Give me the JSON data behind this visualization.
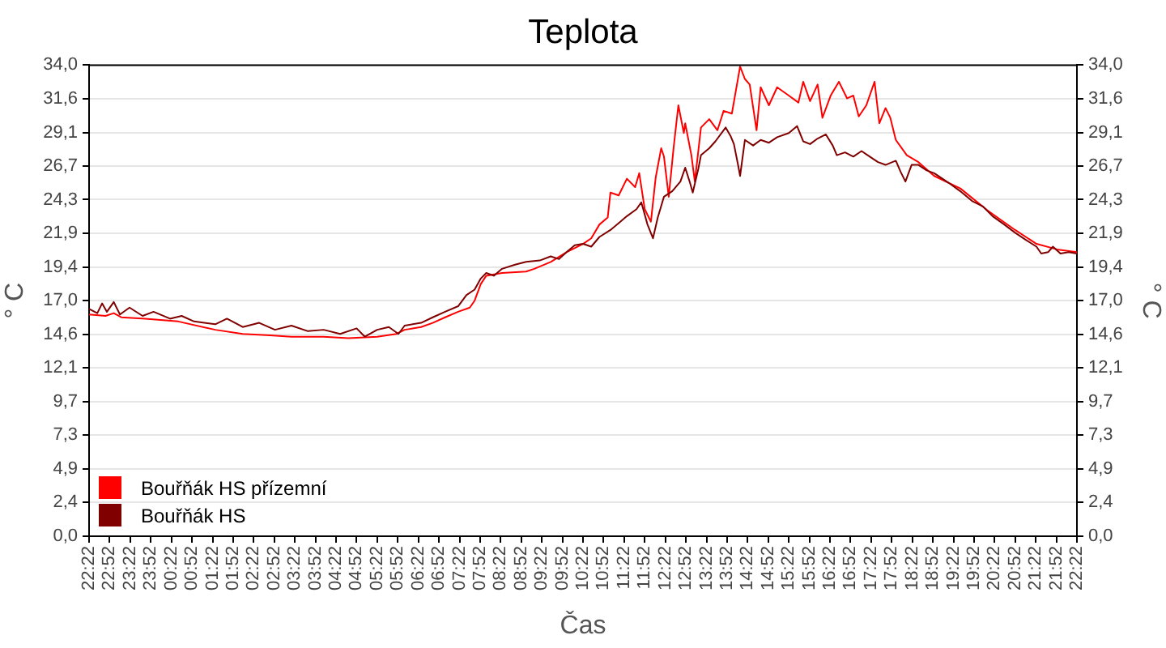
{
  "chart_data": {
    "type": "line",
    "title": "Teplota",
    "xlabel": "Čas",
    "ylabel": "° C",
    "y2label": "° C",
    "xlim": [
      "--01-01T22:22",
      "--01-02T22:22"
    ],
    "xticks": [
      {
        "value": "--01-01T22:22",
        "label": "22:22"
      },
      {
        "value": "--01-01T22:52",
        "label": "22:52"
      },
      {
        "value": "--01-01T23:22",
        "label": "23:22"
      },
      {
        "value": "--01-01T23:52",
        "label": "23:52"
      },
      {
        "value": "--01-02T00:22",
        "label": "00:22"
      },
      {
        "value": "--01-02T00:52",
        "label": "00:52"
      },
      {
        "value": "--01-02T01:22",
        "label": "01:22"
      },
      {
        "value": "--01-02T01:52",
        "label": "01:52"
      },
      {
        "value": "--01-02T02:22",
        "label": "02:22"
      },
      {
        "value": "--01-02T02:52",
        "label": "02:52"
      },
      {
        "value": "--01-02T03:22",
        "label": "03:22"
      },
      {
        "value": "--01-02T03:52",
        "label": "03:52"
      },
      {
        "value": "--01-02T04:22",
        "label": "04:22"
      },
      {
        "value": "--01-02T04:52",
        "label": "04:52"
      },
      {
        "value": "--01-02T05:22",
        "label": "05:22"
      },
      {
        "value": "--01-02T05:52",
        "label": "05:52"
      },
      {
        "value": "--01-02T06:22",
        "label": "06:22"
      },
      {
        "value": "--01-02T06:52",
        "label": "06:52"
      },
      {
        "value": "--01-02T07:22",
        "label": "07:22"
      },
      {
        "value": "--01-02T07:52",
        "label": "07:52"
      },
      {
        "value": "--01-02T08:22",
        "label": "08:22"
      },
      {
        "value": "--01-02T08:52",
        "label": "08:52"
      },
      {
        "value": "--01-02T09:22",
        "label": "09:22"
      },
      {
        "value": "--01-02T09:52",
        "label": "09:52"
      },
      {
        "value": "--01-02T10:22",
        "label": "10:22"
      },
      {
        "value": "--01-02T10:52",
        "label": "10:52"
      },
      {
        "value": "--01-02T11:22",
        "label": "11:22"
      },
      {
        "value": "--01-02T11:52",
        "label": "11:52"
      },
      {
        "value": "--01-02T12:22",
        "label": "12:22"
      },
      {
        "value": "--01-02T12:52",
        "label": "12:52"
      },
      {
        "value": "--01-02T13:22",
        "label": "13:22"
      },
      {
        "value": "--01-02T13:52",
        "label": "13:52"
      },
      {
        "value": "--01-02T14:22",
        "label": "14:22"
      },
      {
        "value": "--01-02T14:52",
        "label": "14:52"
      },
      {
        "value": "--01-02T15:22",
        "label": "15:22"
      },
      {
        "value": "--01-02T15:52",
        "label": "15:52"
      },
      {
        "value": "--01-02T16:22",
        "label": "16:22"
      },
      {
        "value": "--01-02T16:52",
        "label": "16:52"
      },
      {
        "value": "--01-02T17:22",
        "label": "17:22"
      },
      {
        "value": "--01-02T17:52",
        "label": "17:52"
      },
      {
        "value": "--01-02T18:22",
        "label": "18:22"
      },
      {
        "value": "--01-02T18:52",
        "label": "18:52"
      },
      {
        "value": "--01-02T19:22",
        "label": "19:22"
      },
      {
        "value": "--01-02T19:52",
        "label": "19:52"
      },
      {
        "value": "--01-02T20:22",
        "label": "20:22"
      },
      {
        "value": "--01-02T20:52",
        "label": "20:52"
      },
      {
        "value": "--01-02T21:22",
        "label": "21:22"
      },
      {
        "value": "--01-02T21:52",
        "label": "21:52"
      },
      {
        "value": "--01-02T22:22",
        "label": "22:22"
      }
    ],
    "ylim": [
      0,
      34
    ],
    "yticks": [
      {
        "value": 0,
        "label": "0,0"
      },
      {
        "value": 2.43,
        "label": "2,4"
      },
      {
        "value": 4.86,
        "label": "4,9"
      },
      {
        "value": 7.29,
        "label": "7,3"
      },
      {
        "value": 9.71,
        "label": "9,7"
      },
      {
        "value": 12.14,
        "label": "12,1"
      },
      {
        "value": 14.57,
        "label": "14,6"
      },
      {
        "value": 17,
        "label": "17,0"
      },
      {
        "value": 19.43,
        "label": "19,4"
      },
      {
        "value": 21.86,
        "label": "21,9"
      },
      {
        "value": 24.29,
        "label": "24,3"
      },
      {
        "value": 26.71,
        "label": "26,7"
      },
      {
        "value": 29.14,
        "label": "29,1"
      },
      {
        "value": 31.57,
        "label": "31,6"
      },
      {
        "value": 34,
        "label": "34,0"
      }
    ],
    "y2lim": [
      0,
      34
    ],
    "y2ticks": [
      {
        "value": 0,
        "label": "0,0"
      },
      {
        "value": 2.43,
        "label": "2,4"
      },
      {
        "value": 4.86,
        "label": "4,9"
      },
      {
        "value": 7.29,
        "label": "7,3"
      },
      {
        "value": 9.71,
        "label": "9,7"
      },
      {
        "value": 12.14,
        "label": "12,1"
      },
      {
        "value": 14.57,
        "label": "14,6"
      },
      {
        "value": 17,
        "label": "17,0"
      },
      {
        "value": 19.43,
        "label": "19,4"
      },
      {
        "value": 21.86,
        "label": "21,9"
      },
      {
        "value": 24.29,
        "label": "24,3"
      },
      {
        "value": 26.71,
        "label": "26,7"
      },
      {
        "value": 29.14,
        "label": "29,1"
      },
      {
        "value": 31.57,
        "label": "31,6"
      },
      {
        "value": 34,
        "label": "34,0"
      }
    ],
    "grid": "y",
    "legend": "bottom left",
    "marker": "none",
    "line_style": "solid",
    "series": [
      {
        "name": "Bouřňák HS přízemní",
        "color": "#ff0000",
        "x": [
          "--01-01T22:22",
          "--01-01T22:46",
          "--01-01T22:58",
          "--01-01T23:09",
          "--01-01T23:44",
          "--01-02T00:32",
          "--01-02T01:26",
          "--01-02T02:06",
          "--01-02T02:46",
          "--01-02T03:17",
          "--01-02T04:04",
          "--01-02T04:40",
          "--01-02T05:22",
          "--01-02T05:50",
          "--01-02T06:02",
          "--01-02T06:26",
          "--01-02T06:43",
          "--01-02T07:01",
          "--01-02T07:20",
          "--01-02T07:37",
          "--01-02T07:44",
          "--01-02T07:53",
          "--01-02T08:01",
          "--01-02T08:24",
          "--01-02T08:59",
          "--01-02T09:11",
          "--01-02T09:35",
          "--01-02T09:58",
          "--01-02T10:22",
          "--01-02T10:34",
          "--01-02T10:46",
          "--01-02T10:58",
          "--01-02T11:02",
          "--01-02T11:14",
          "--01-02T11:26",
          "--01-02T11:38",
          "--01-02T11:44",
          "--01-02T11:52",
          "--01-02T12:01",
          "--01-02T12:08",
          "--01-02T12:16",
          "--01-02T12:20",
          "--01-02T12:27",
          "--01-02T12:34",
          "--01-02T12:41",
          "--01-02T12:49",
          "--01-02T12:51",
          "--01-02T13:00",
          "--01-02T13:05",
          "--01-02T13:14",
          "--01-02T13:26",
          "--01-02T13:38",
          "--01-02T13:47",
          "--01-02T13:59",
          "--01-02T14:11",
          "--01-02T14:18",
          "--01-02T14:25",
          "--01-02T14:35",
          "--01-02T14:41",
          "--01-02T14:53",
          "--01-02T15:05",
          "--01-02T15:22",
          "--01-02T15:36",
          "--01-02T15:43",
          "--01-02T15:53",
          "--01-02T16:04",
          "--01-02T16:11",
          "--01-02T16:23",
          "--01-02T16:35",
          "--01-02T16:47",
          "--01-02T16:56",
          "--01-02T17:04",
          "--01-02T17:15",
          "--01-02T17:27",
          "--01-02T17:34",
          "--01-02T17:43",
          "--01-02T17:50",
          "--01-02T17:58",
          "--01-02T18:14",
          "--01-02T18:31",
          "--01-02T18:54",
          "--01-02T19:32",
          "--01-02T20:12",
          "--01-02T20:52",
          "--01-02T21:23",
          "--01-02T21:53",
          "--01-02T22:22"
        ],
        "values": [
          16.0,
          15.9,
          16.1,
          15.8,
          15.7,
          15.5,
          14.9,
          14.6,
          14.5,
          14.4,
          14.4,
          14.3,
          14.4,
          14.6,
          14.9,
          15.1,
          15.4,
          15.8,
          16.2,
          16.5,
          17.0,
          18.2,
          18.8,
          19.0,
          19.1,
          19.3,
          19.8,
          20.5,
          21.1,
          21.5,
          22.5,
          23.0,
          24.8,
          24.6,
          25.8,
          25.2,
          26.2,
          23.6,
          22.7,
          25.9,
          28.0,
          27.4,
          24.5,
          28.0,
          31.1,
          29.1,
          29.8,
          27.5,
          25.6,
          29.5,
          30.1,
          29.3,
          30.7,
          30.5,
          33.9,
          33.0,
          32.6,
          29.3,
          32.4,
          31.1,
          32.4,
          31.8,
          31.3,
          32.8,
          31.4,
          32.6,
          30.2,
          31.8,
          32.8,
          31.6,
          31.8,
          30.3,
          31.1,
          32.8,
          29.8,
          30.9,
          30.2,
          28.6,
          27.5,
          27.0,
          26.0,
          25.1,
          23.5,
          22.1,
          21.1,
          20.7,
          20.5
        ]
      },
      {
        "name": "Bouřňák HS",
        "color": "#800000",
        "x": [
          "--01-01T22:22",
          "--01-01T22:34",
          "--01-01T22:41",
          "--01-01T22:48",
          "--01-01T22:58",
          "--01-01T23:07",
          "--01-01T23:21",
          "--01-01T23:40",
          "--01-01T23:56",
          "--01-02T00:20",
          "--01-02T00:37",
          "--01-02T00:55",
          "--01-02T01:26",
          "--01-02T01:43",
          "--01-02T02:06",
          "--01-02T02:30",
          "--01-02T02:53",
          "--01-02T03:17",
          "--01-02T03:41",
          "--01-02T04:04",
          "--01-02T04:28",
          "--01-02T04:52",
          "--01-02T05:04",
          "--01-02T05:22",
          "--01-02T05:39",
          "--01-02T05:53",
          "--01-02T06:02",
          "--01-02T06:26",
          "--01-02T06:43",
          "--01-02T07:01",
          "--01-02T07:20",
          "--01-02T07:32",
          "--01-02T07:44",
          "--01-02T07:53",
          "--01-02T08:01",
          "--01-02T08:12",
          "--01-02T08:24",
          "--01-02T08:43",
          "--01-02T08:59",
          "--01-02T09:19",
          "--01-02T09:35",
          "--01-02T09:47",
          "--01-02T09:58",
          "--01-02T10:10",
          "--01-02T10:22",
          "--01-02T10:34",
          "--01-02T10:46",
          "--01-02T11:02",
          "--01-02T11:14",
          "--01-02T11:26",
          "--01-02T11:40",
          "--01-02T11:47",
          "--01-02T11:56",
          "--01-02T12:04",
          "--01-02T12:11",
          "--01-02T12:20",
          "--01-02T12:32",
          "--01-02T12:44",
          "--01-02T12:51",
          "--01-02T12:58",
          "--01-02T13:02",
          "--01-02T13:10",
          "--01-02T13:14",
          "--01-02T13:26",
          "--01-02T13:35",
          "--01-02T13:50",
          "--01-02T13:57",
          "--01-02T14:02",
          "--01-02T14:08",
          "--01-02T14:11",
          "--01-02T14:18",
          "--01-02T14:30",
          "--01-02T14:41",
          "--01-02T14:53",
          "--01-02T15:05",
          "--01-02T15:22",
          "--01-02T15:34",
          "--01-02T15:43",
          "--01-02T15:53",
          "--01-02T16:04",
          "--01-02T16:16",
          "--01-02T16:26",
          "--01-02T16:32",
          "--01-02T16:44",
          "--01-02T16:56",
          "--01-02T17:08",
          "--01-02T17:20",
          "--01-02T17:32",
          "--01-02T17:43",
          "--01-02T17:58",
          "--01-02T18:05",
          "--01-02T18:12",
          "--01-02T18:21",
          "--01-02T18:31",
          "--01-02T18:43",
          "--01-02T18:54",
          "--01-02T19:06",
          "--01-02T19:18",
          "--01-02T19:32",
          "--01-02T19:49",
          "--01-02T20:05",
          "--01-02T20:19",
          "--01-02T20:36",
          "--01-02T20:52",
          "--01-02T21:07",
          "--01-02T21:23",
          "--01-02T21:30",
          "--01-02T21:40",
          "--01-02T21:47",
          "--01-02T21:58",
          "--01-02T22:10",
          "--01-02T22:22"
        ],
        "values": [
          16.4,
          16.1,
          16.8,
          16.2,
          16.9,
          16.0,
          16.5,
          15.9,
          16.2,
          15.7,
          15.9,
          15.5,
          15.3,
          15.7,
          15.1,
          15.4,
          14.9,
          15.2,
          14.8,
          14.9,
          14.6,
          15.0,
          14.4,
          14.9,
          15.1,
          14.6,
          15.2,
          15.4,
          15.8,
          16.2,
          16.6,
          17.4,
          17.8,
          18.6,
          19.0,
          18.8,
          19.3,
          19.6,
          19.8,
          19.9,
          20.2,
          20.0,
          20.5,
          21.0,
          21.1,
          20.9,
          21.6,
          22.1,
          22.6,
          23.1,
          23.6,
          24.1,
          22.5,
          21.5,
          23.0,
          24.5,
          24.9,
          25.6,
          26.6,
          25.5,
          24.8,
          26.5,
          27.5,
          28.0,
          28.5,
          29.5,
          28.9,
          28.3,
          26.8,
          26.0,
          28.6,
          28.2,
          28.6,
          28.4,
          28.8,
          29.1,
          29.6,
          28.5,
          28.3,
          28.7,
          29.0,
          28.2,
          27.5,
          27.7,
          27.4,
          27.8,
          27.4,
          27.0,
          26.8,
          27.1,
          26.3,
          25.6,
          26.8,
          26.8,
          26.4,
          26.2,
          25.8,
          25.4,
          24.9,
          24.2,
          23.8,
          23.1,
          22.5,
          21.9,
          21.4,
          20.9,
          20.4,
          20.5,
          20.9,
          20.4,
          20.5,
          20.4
        ]
      }
    ]
  }
}
